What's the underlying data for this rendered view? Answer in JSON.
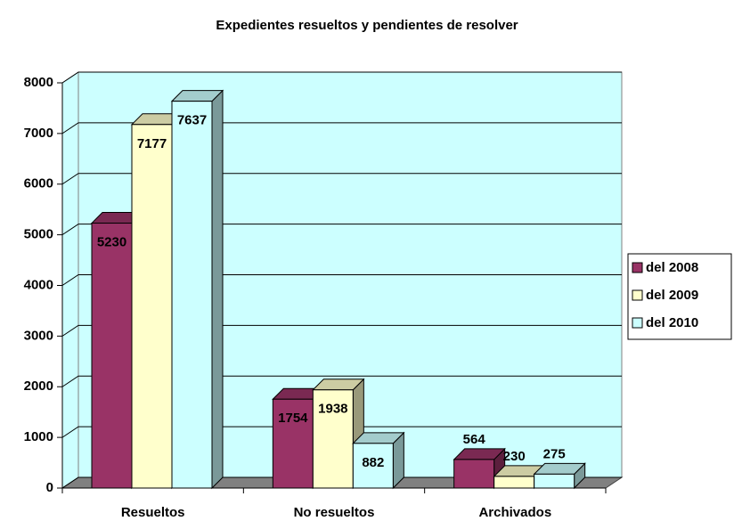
{
  "chart_data": {
    "type": "bar3d",
    "title": "Expedientes resueltos y pendientes de resolver",
    "categories": [
      "Resueltos",
      "No resueltos",
      "Archivados"
    ],
    "series": [
      {
        "name": "del 2008",
        "color": "#993366",
        "values": [
          5230,
          1754,
          564
        ]
      },
      {
        "name": "del 2009",
        "color": "#FFFFCC",
        "values": [
          7177,
          1938,
          230
        ]
      },
      {
        "name": "del 2010",
        "color": "#CCFFFF",
        "values": [
          7637,
          882,
          275
        ]
      }
    ],
    "ylim": [
      0,
      8000
    ],
    "yticks": [
      0,
      1000,
      2000,
      3000,
      4000,
      5000,
      6000,
      7000,
      8000
    ],
    "grid": true,
    "legend": "right"
  }
}
